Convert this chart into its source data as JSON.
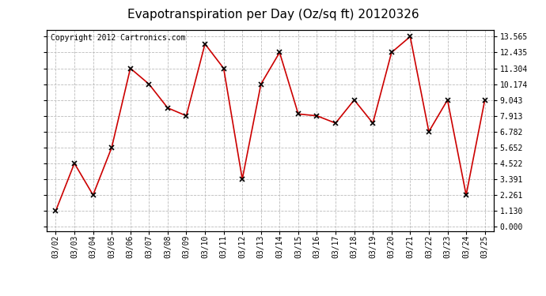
{
  "title": "Evapotranspiration per Day (Oz/sq ft) 20120326",
  "copyright": "Copyright 2012 Cartronics.com",
  "dates": [
    "03/02",
    "03/03",
    "03/04",
    "03/05",
    "03/06",
    "03/07",
    "03/08",
    "03/09",
    "03/10",
    "03/11",
    "03/12",
    "03/13",
    "03/14",
    "03/15",
    "03/16",
    "03/17",
    "03/18",
    "03/19",
    "03/20",
    "03/21",
    "03/22",
    "03/23",
    "03/24",
    "03/25"
  ],
  "values": [
    1.13,
    4.522,
    2.261,
    5.652,
    11.304,
    10.174,
    8.478,
    7.913,
    13.043,
    11.304,
    3.391,
    10.174,
    12.435,
    8.043,
    7.913,
    7.391,
    9.043,
    7.391,
    12.435,
    13.565,
    6.782,
    9.043,
    2.261,
    9.043
  ],
  "yticks": [
    0.0,
    1.13,
    2.261,
    3.391,
    4.522,
    5.652,
    6.782,
    7.913,
    9.043,
    10.174,
    11.304,
    12.435,
    13.565
  ],
  "line_color": "#cc0000",
  "marker": "x",
  "marker_color": "#000000",
  "background_color": "#ffffff",
  "grid_color": "#bbbbbb",
  "ylim": [
    0.0,
    13.565
  ],
  "title_fontsize": 11,
  "copyright_fontsize": 7,
  "tick_fontsize": 7
}
